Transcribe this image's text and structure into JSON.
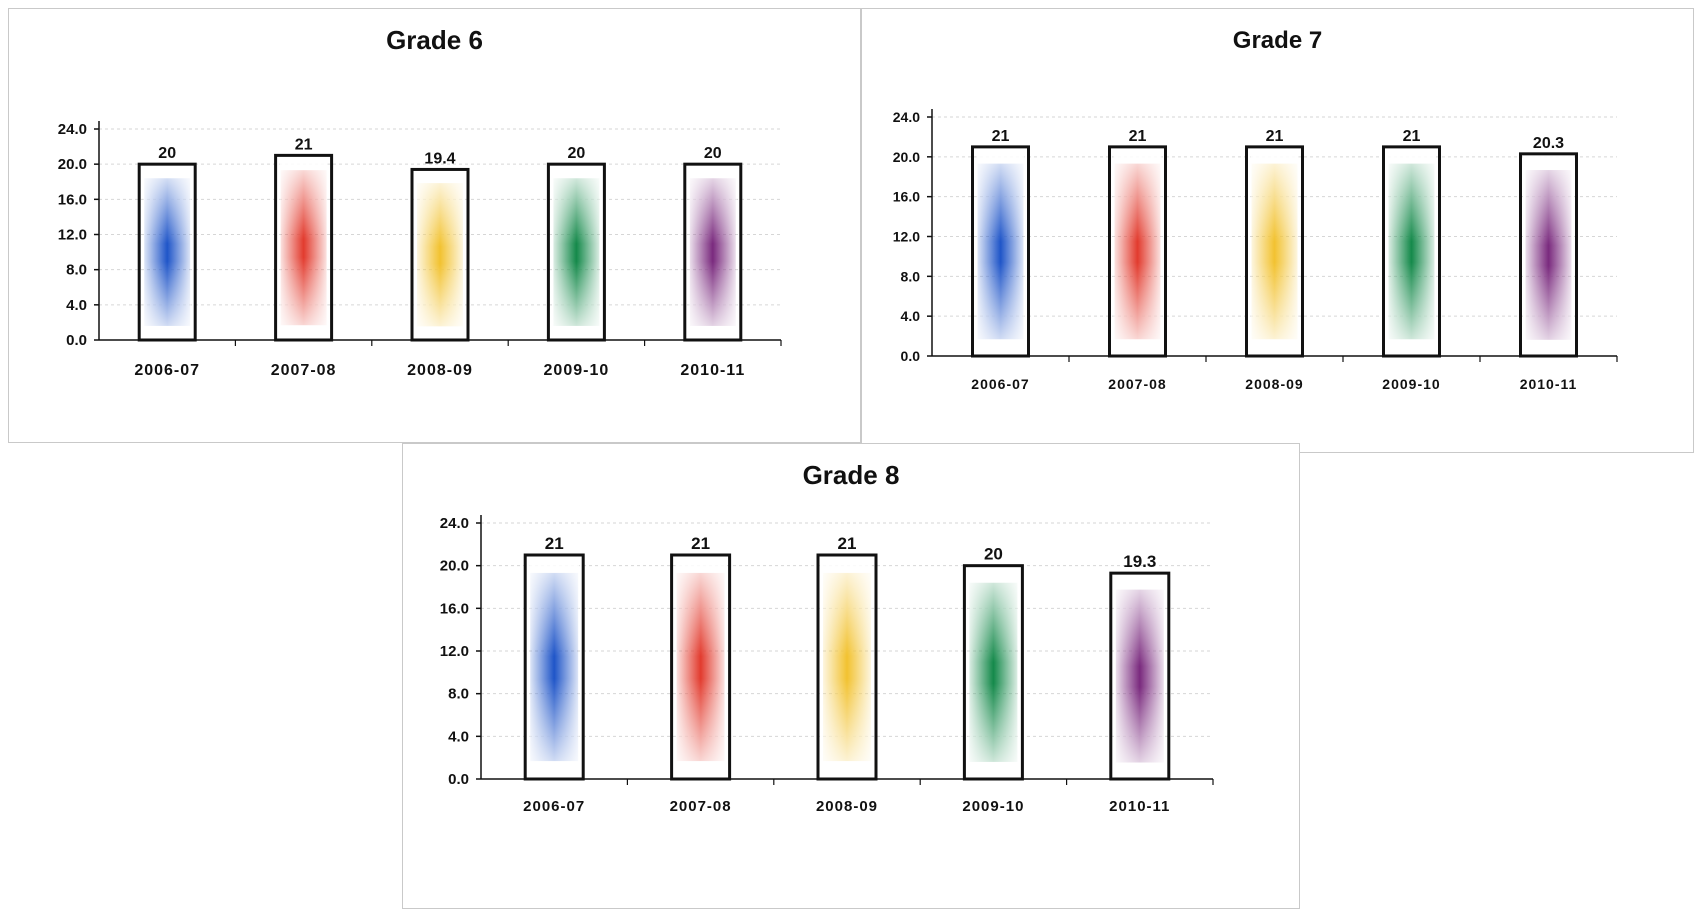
{
  "colors": {
    "series": [
      "#1f55c8",
      "#e23b2e",
      "#f2c230",
      "#14894a",
      "#7a2a7e"
    ],
    "bar_outline": "#111111",
    "grid": "#d6d6d6",
    "axis": "#111111"
  },
  "chart_data": [
    {
      "type": "bar",
      "title": "Grade 6",
      "categories": [
        "2006-07",
        "2007-08",
        "2008-09",
        "2009-10",
        "2010-11"
      ],
      "values": [
        20,
        21,
        19.4,
        20,
        20
      ],
      "data_labels": [
        "20",
        "21",
        "19.4",
        "20",
        "20"
      ],
      "yticks": [
        "0.0",
        "4.0",
        "8.0",
        "12.0",
        "16.0",
        "20.0",
        "24.0"
      ],
      "ylim": [
        0,
        24
      ],
      "grid": true,
      "legend": "none"
    },
    {
      "type": "bar",
      "title": "Grade 7",
      "categories": [
        "2006-07",
        "2007-08",
        "2008-09",
        "2009-10",
        "2010-11"
      ],
      "values": [
        21,
        21,
        21,
        21,
        20.3
      ],
      "data_labels": [
        "21",
        "21",
        "21",
        "21",
        "20.3"
      ],
      "yticks": [
        "0.0",
        "4.0",
        "8.0",
        "12.0",
        "16.0",
        "20.0",
        "24.0"
      ],
      "ylim": [
        0,
        24
      ],
      "grid": true,
      "legend": "none"
    },
    {
      "type": "bar",
      "title": "Grade 8",
      "categories": [
        "2006-07",
        "2007-08",
        "2008-09",
        "2009-10",
        "2010-11"
      ],
      "values": [
        21,
        21,
        21,
        20,
        19.3
      ],
      "data_labels": [
        "21",
        "21",
        "21",
        "20",
        "19.3"
      ],
      "yticks": [
        "0.0",
        "4.0",
        "8.0",
        "12.0",
        "16.0",
        "20.0",
        "24.0"
      ],
      "ylim": [
        0,
        24
      ],
      "grid": true,
      "legend": "none"
    }
  ]
}
